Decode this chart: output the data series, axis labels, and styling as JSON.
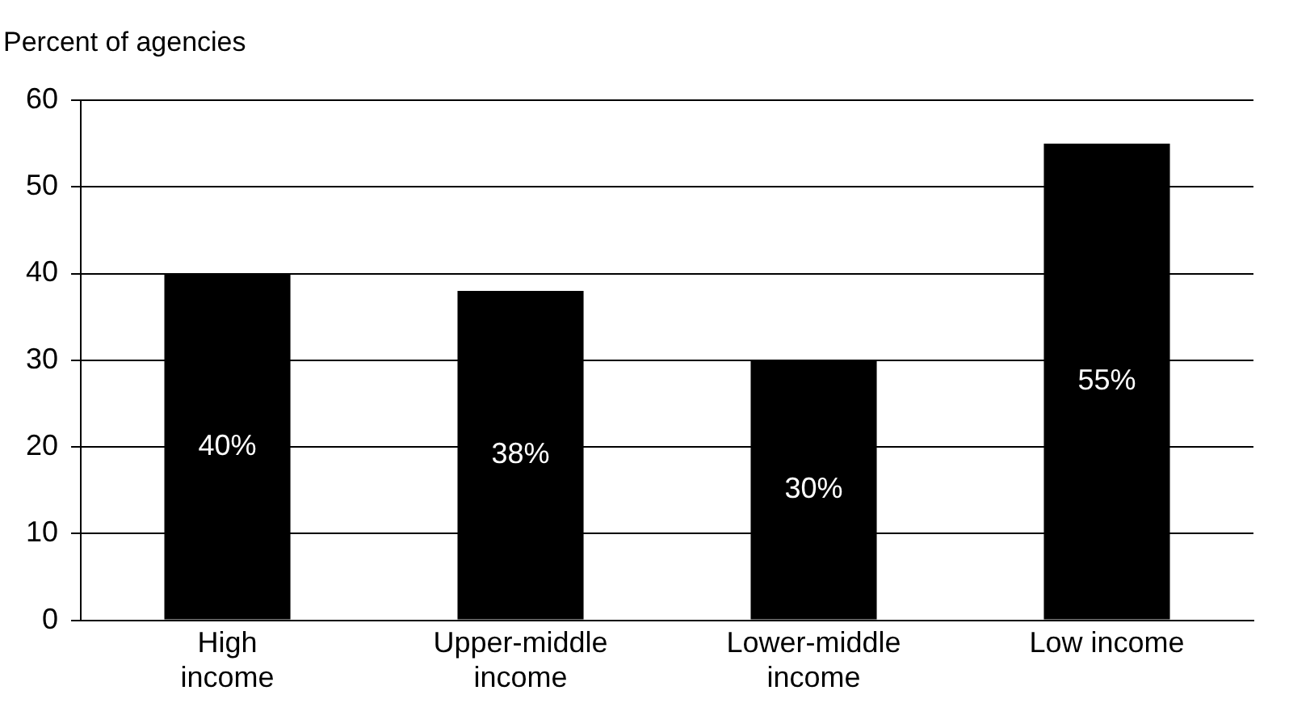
{
  "chart_data": {
    "type": "bar",
    "ylabel": "Percent of agencies",
    "categories": [
      "High\nincome",
      "Upper-middle\nincome",
      "Lower-middle\nincome",
      "Low income"
    ],
    "values": [
      40,
      38,
      30,
      55
    ],
    "color": "#000000",
    "value_labels": [
      "40%",
      "38%",
      "30%",
      "55%"
    ],
    "ylim": [
      0,
      60
    ],
    "yticks": [
      0,
      10,
      20,
      30,
      40,
      50,
      60
    ],
    "grid": "y",
    "legend": false
  }
}
